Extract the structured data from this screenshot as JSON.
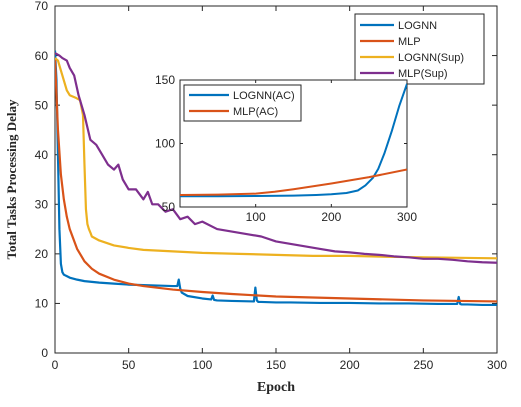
{
  "chart_data": [
    {
      "type": "line",
      "title": "",
      "xlabel": "Epoch",
      "ylabel": "Total Tasks Processing Delay",
      "xlim": [
        0,
        300
      ],
      "ylim": [
        0,
        70
      ],
      "xticks": [
        0,
        50,
        100,
        150,
        200,
        250,
        300
      ],
      "yticks": [
        0,
        10,
        20,
        30,
        40,
        50,
        60,
        70
      ],
      "xtick_labels": [
        "0",
        "50",
        "100",
        "150",
        "200",
        "250",
        "300"
      ],
      "ytick_labels": [
        "0",
        "10",
        "20",
        "30",
        "40",
        "50",
        "60",
        "70"
      ],
      "grid": false,
      "legend_position": "top-right",
      "series": [
        {
          "name": "LOGNN",
          "color": "#0072BD",
          "x": [
            0,
            1,
            2,
            3,
            4,
            5,
            6,
            8,
            10,
            15,
            20,
            30,
            40,
            50,
            60,
            70,
            80,
            83,
            84,
            85,
            86,
            90,
            100,
            106,
            107,
            108,
            110,
            120,
            135,
            136,
            137,
            138,
            140,
            150,
            160,
            180,
            200,
            220,
            240,
            260,
            273,
            274,
            275,
            276,
            280,
            290,
            300
          ],
          "y": [
            61,
            55,
            40,
            25,
            18,
            16.3,
            15.8,
            15.5,
            15.2,
            14.8,
            14.5,
            14.2,
            14.0,
            13.8,
            13.7,
            13.6,
            13.5,
            13.5,
            14.8,
            13.0,
            12.2,
            11.5,
            11.0,
            10.8,
            11.6,
            10.7,
            10.6,
            10.5,
            10.4,
            13.2,
            10.6,
            10.3,
            10.3,
            10.2,
            10.2,
            10.1,
            10.1,
            10.0,
            10.0,
            9.9,
            9.9,
            11.3,
            9.9,
            9.8,
            9.8,
            9.7,
            9.7
          ]
        },
        {
          "name": "MLP",
          "color": "#D95319",
          "x": [
            0,
            2,
            4,
            6,
            8,
            10,
            15,
            20,
            25,
            30,
            40,
            50,
            60,
            80,
            100,
            120,
            150,
            200,
            250,
            300
          ],
          "y": [
            59.5,
            45,
            36,
            31,
            27.5,
            25,
            21,
            18.5,
            17,
            16,
            14.8,
            14.0,
            13.5,
            12.8,
            12.3,
            11.9,
            11.4,
            11.0,
            10.6,
            10.4
          ]
        },
        {
          "name": "LOGNN(Sup)",
          "color": "#EDB120",
          "x": [
            0,
            2,
            5,
            8,
            10,
            14,
            17,
            19,
            20,
            21,
            22,
            23,
            24,
            25,
            30,
            40,
            50,
            60,
            80,
            100,
            125,
            150,
            175,
            200,
            225,
            250,
            275,
            300
          ],
          "y": [
            59.5,
            59,
            56,
            53,
            52,
            51.5,
            51,
            48,
            38,
            29,
            26,
            25,
            24.3,
            23.5,
            22.7,
            21.7,
            21.2,
            20.8,
            20.5,
            20.2,
            20.0,
            19.8,
            19.6,
            19.6,
            19.4,
            19.3,
            19.2,
            19.1
          ]
        },
        {
          "name": "MLP(Sup)",
          "color": "#7E2F8E",
          "x": [
            0,
            3,
            5,
            8,
            10,
            13,
            16,
            20,
            24,
            28,
            32,
            36,
            40,
            43,
            46,
            50,
            55,
            60,
            63,
            66,
            70,
            75,
            80,
            85,
            90,
            95,
            100,
            110,
            120,
            130,
            140,
            150,
            160,
            170,
            180,
            190,
            200,
            210,
            220,
            230,
            240,
            250,
            260,
            270,
            280,
            290,
            300
          ],
          "y": [
            60.5,
            60,
            59.5,
            59,
            57.5,
            56,
            52,
            48,
            43,
            42,
            40,
            38,
            37,
            38,
            35,
            33,
            33,
            31,
            32.5,
            30,
            30,
            28.5,
            29,
            27,
            27.5,
            26,
            26.5,
            25,
            24.5,
            24,
            23.5,
            22.5,
            22,
            21.5,
            21,
            20.5,
            20.3,
            20,
            19.8,
            19.5,
            19.3,
            19,
            19,
            18.8,
            18.5,
            18.3,
            18.2
          ]
        }
      ]
    },
    {
      "type": "line",
      "title": "",
      "xlabel": "",
      "ylabel": "",
      "xlim": [
        0,
        300
      ],
      "ylim": [
        50,
        150
      ],
      "xticks": [
        100,
        200,
        300
      ],
      "yticks": [
        50,
        100,
        150
      ],
      "xtick_labels": [
        "100",
        "200",
        "300"
      ],
      "ytick_labels": [
        "50",
        "100",
        "150"
      ],
      "grid": false,
      "legend_position": "top-left",
      "series": [
        {
          "name": "LOGNN(AC)",
          "color": "#0072BD",
          "x": [
            0,
            50,
            100,
            150,
            180,
            200,
            220,
            235,
            245,
            255,
            262,
            270,
            280,
            290,
            300
          ],
          "y": [
            58.5,
            58.5,
            58.7,
            59,
            59.5,
            60,
            61,
            63,
            67,
            73,
            80,
            92,
            110,
            130,
            147
          ]
        },
        {
          "name": "MLP(AC)",
          "color": "#D95319",
          "x": [
            0,
            50,
            100,
            125,
            150,
            200,
            250,
            300
          ],
          "y": [
            59.5,
            59.7,
            60.5,
            62,
            64,
            68.5,
            73.5,
            79.5
          ]
        }
      ]
    }
  ]
}
